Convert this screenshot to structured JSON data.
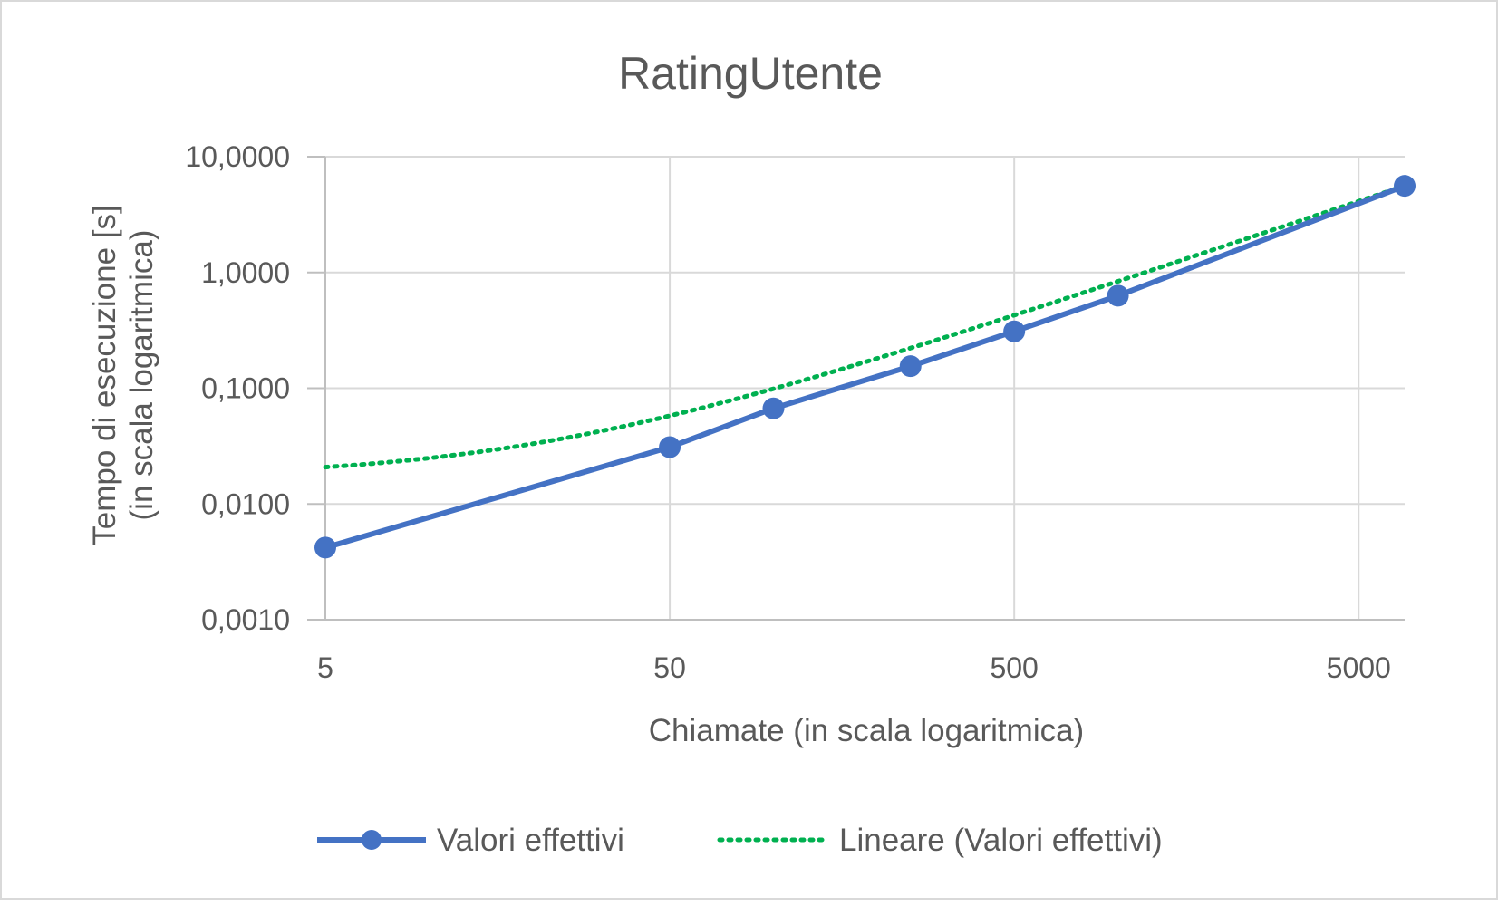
{
  "chart_data": {
    "type": "line",
    "title": "RatingUtente",
    "xlabel": "Chiamate (in scala logaritmica)",
    "ylabel": [
      "Tempo di esecuzione [s]",
      "(in scala logaritmica)"
    ],
    "x_scale": "log",
    "y_scale": "log",
    "xlim": [
      5,
      6800
    ],
    "ylim": [
      0.001,
      10
    ],
    "x_ticks": [
      5,
      50,
      500,
      5000
    ],
    "x_tick_labels": [
      "5",
      "50",
      "500",
      "5000"
    ],
    "y_ticks": [
      0.001,
      0.01,
      0.1,
      1,
      10
    ],
    "y_tick_labels": [
      "0,0010",
      "0,0100",
      "0,1000",
      "1,0000",
      "10,0000"
    ],
    "grid": true,
    "legend_position": "bottom",
    "series": [
      {
        "name": "Valori effettivi",
        "style": "solid-markers",
        "color": "#4472c4",
        "x": [
          5,
          50,
          100,
          250,
          500,
          1000,
          6800
        ],
        "y": [
          0.0042,
          0.031,
          0.067,
          0.155,
          0.31,
          0.63,
          5.6
        ]
      },
      {
        "name": "Lineare (Valori effettivi)",
        "style": "dotted",
        "color": "#00b050",
        "trendline": {
          "type": "linear",
          "slope": 0.000822,
          "intercept": 0.0167
        },
        "x": [
          5,
          10,
          20,
          50,
          100,
          250,
          500,
          1000,
          2000,
          5000,
          6800
        ],
        "y": [
          0.0208,
          0.025,
          0.0331,
          0.0578,
          0.0989,
          0.222,
          0.428,
          0.839,
          1.66,
          4.13,
          5.61
        ]
      }
    ]
  }
}
